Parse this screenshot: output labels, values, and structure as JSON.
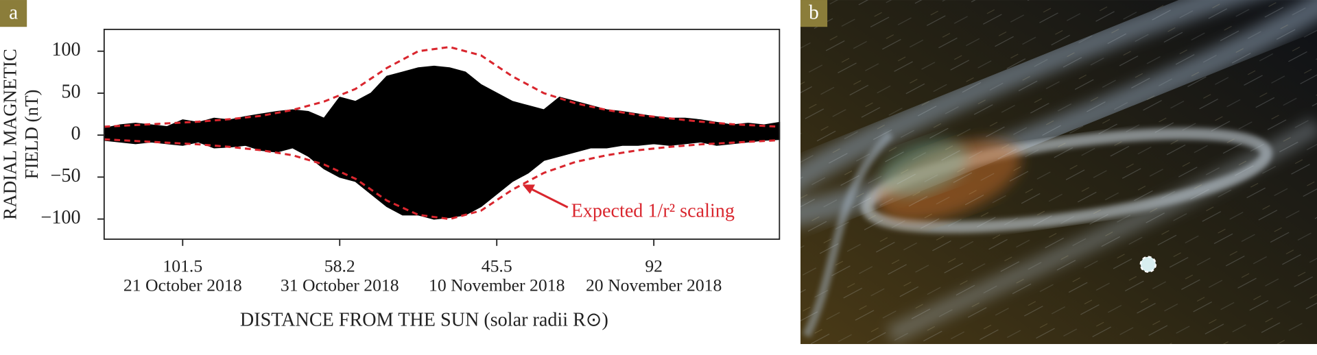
{
  "panels": {
    "a": "a",
    "b": "b"
  },
  "chart_data": {
    "type": "range",
    "y_label": [
      "RADIAL MAGNETIC",
      "FIELD (nT)"
    ],
    "x_label": "DISTANCE FROM THE SUN (solar radii R⊙)",
    "x": [
      "2018-10-16",
      "2018-10-17",
      "2018-10-18",
      "2018-10-19",
      "2018-10-20",
      "2018-10-21",
      "2018-10-22",
      "2018-10-23",
      "2018-10-24",
      "2018-10-25",
      "2018-10-26",
      "2018-10-27",
      "2018-10-28",
      "2018-10-29",
      "2018-10-30",
      "2018-10-31",
      "2018-11-01",
      "2018-11-02",
      "2018-11-03",
      "2018-11-04",
      "2018-11-05",
      "2018-11-06",
      "2018-11-07",
      "2018-11-08",
      "2018-11-09",
      "2018-11-10",
      "2018-11-11",
      "2018-11-12",
      "2018-11-13",
      "2018-11-14",
      "2018-11-15",
      "2018-11-16",
      "2018-11-17",
      "2018-11-18",
      "2018-11-19",
      "2018-11-20",
      "2018-11-21",
      "2018-11-22",
      "2018-11-23",
      "2018-11-24",
      "2018-11-25",
      "2018-11-26",
      "2018-11-27",
      "2018-11-28"
    ],
    "high": [
      8,
      12,
      14,
      12,
      10,
      18,
      15,
      20,
      18,
      22,
      25,
      28,
      30,
      28,
      20,
      45,
      40,
      50,
      70,
      75,
      80,
      82,
      80,
      75,
      60,
      50,
      40,
      35,
      30,
      45,
      40,
      35,
      30,
      28,
      25,
      22,
      20,
      20,
      18,
      15,
      12,
      14,
      12,
      15
    ],
    "low": [
      -6,
      -8,
      -10,
      -8,
      -10,
      -12,
      -8,
      -15,
      -14,
      -12,
      -18,
      -20,
      -15,
      -25,
      -40,
      -50,
      -55,
      -70,
      -85,
      -95,
      -95,
      -100,
      -98,
      -95,
      -85,
      -70,
      -55,
      -45,
      -30,
      -25,
      -20,
      -15,
      -15,
      -12,
      -12,
      -10,
      -12,
      -10,
      -8,
      -12,
      -10,
      -8,
      -6,
      -5
    ],
    "color": "#000000",
    "envelope": {
      "label": "Expected 1/r² scaling",
      "color": "#d9262e",
      "x": [
        "2018-10-16",
        "2018-10-18",
        "2018-10-20",
        "2018-10-22",
        "2018-10-24",
        "2018-10-26",
        "2018-10-28",
        "2018-10-30",
        "2018-11-01",
        "2018-11-03",
        "2018-11-05",
        "2018-11-07",
        "2018-11-09",
        "2018-11-11",
        "2018-11-13",
        "2018-11-15",
        "2018-11-17",
        "2018-11-19",
        "2018-11-21",
        "2018-11-23",
        "2018-11-25",
        "2018-11-27",
        "2018-11-28"
      ],
      "upper": [
        10,
        12,
        14,
        16,
        19,
        23,
        30,
        40,
        55,
        80,
        100,
        105,
        95,
        70,
        50,
        38,
        30,
        24,
        20,
        16,
        13,
        11,
        10
      ],
      "lower": [
        -5,
        -7,
        -9,
        -11,
        -14,
        -18,
        -24,
        -35,
        -52,
        -78,
        -95,
        -100,
        -90,
        -65,
        -45,
        -32,
        -24,
        -18,
        -14,
        -11,
        -9,
        -7,
        -6
      ]
    },
    "xlim": [
      "2018-10-16",
      "2018-11-28"
    ],
    "xticks": [
      {
        "value": "2018-10-21",
        "label": [
          "101.5",
          "21 October 2018"
        ]
      },
      {
        "value": "2018-10-31",
        "label": [
          "58.2",
          "31 October 2018"
        ]
      },
      {
        "value": "2018-11-10",
        "label": [
          "45.5",
          "10 November 2018"
        ]
      },
      {
        "value": "2018-11-20",
        "label": [
          "92",
          "20 November 2018"
        ]
      }
    ],
    "ylim": [
      -124,
      126
    ],
    "yticks": [
      {
        "value": -100,
        "label": "−100"
      },
      {
        "value": -50,
        "label": "−50"
      },
      0,
      50,
      100
    ]
  }
}
